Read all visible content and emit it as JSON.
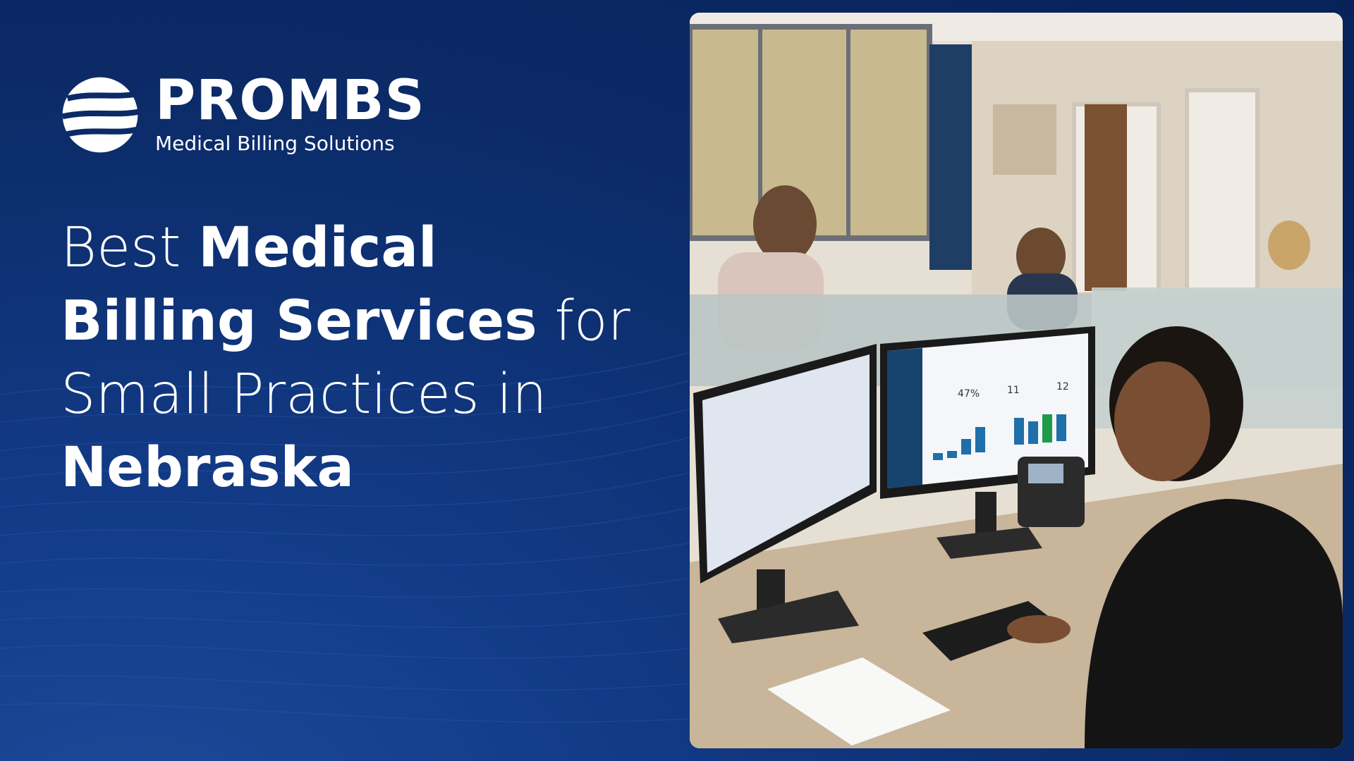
{
  "logo": {
    "name": "PROMBS",
    "tagline": "Medical Billing Solutions"
  },
  "headline": {
    "part1": "Best ",
    "part2_bold": "Medical Billing Services",
    "part3": " for Small Practices in ",
    "part4_bold": "Nebraska"
  },
  "photo": {
    "dashboard_stats": [
      "47%",
      "11",
      "12"
    ]
  },
  "colors": {
    "background": "#0b2a66",
    "text": "#ffffff",
    "bar_blue": "#1f6fa8",
    "bar_green": "#1f9a4a"
  }
}
